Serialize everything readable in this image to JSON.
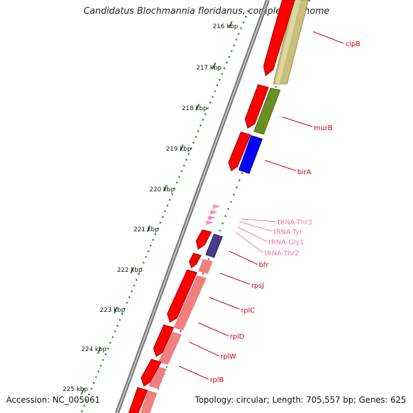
{
  "title": "Candidatus Blochmannia floridanus, complete genome",
  "footer": {
    "accession": "Accession: NC_005061",
    "summary": "Topology: circular; Length: 705,557 bp; Genes: 625"
  },
  "scale_labels": [
    "216 kbp",
    "217 kbp",
    "218 kbp",
    "219 kbp",
    "220 kbp",
    "221 kbp",
    "222 kbp",
    "223 kbp",
    "224 kbp",
    "225 kbp"
  ],
  "gene_labels": [
    {
      "name": "clpB",
      "kind": "cds"
    },
    {
      "name": "murB",
      "kind": "cds"
    },
    {
      "name": "birA",
      "kind": "cds"
    },
    {
      "name": "tRNA-Thr3",
      "kind": "trna"
    },
    {
      "name": "tRNA-Tyr",
      "kind": "trna"
    },
    {
      "name": "tRNA-Gly1",
      "kind": "trna"
    },
    {
      "name": "tRNA-Thr2",
      "kind": "trna"
    },
    {
      "name": "bfr",
      "kind": "cds"
    },
    {
      "name": "rpsJ",
      "kind": "cds"
    },
    {
      "name": "rplC",
      "kind": "cds"
    },
    {
      "name": "rplD",
      "kind": "cds"
    },
    {
      "name": "rplW",
      "kind": "cds"
    },
    {
      "name": "rplB",
      "kind": "cds"
    }
  ],
  "colors": {
    "cds_label": "#cc0000",
    "trna_label": "#ee77aa",
    "backbone": "#888888",
    "gene_forward": "#ff0000",
    "clpB_cog": "#c8c080",
    "murB_cog": "#6b8e23",
    "birA_cog": "#0000ff",
    "bfr_cog": "#4b3a8a",
    "ribosomal_cog": "#f08080",
    "tick": "#228b22"
  }
}
